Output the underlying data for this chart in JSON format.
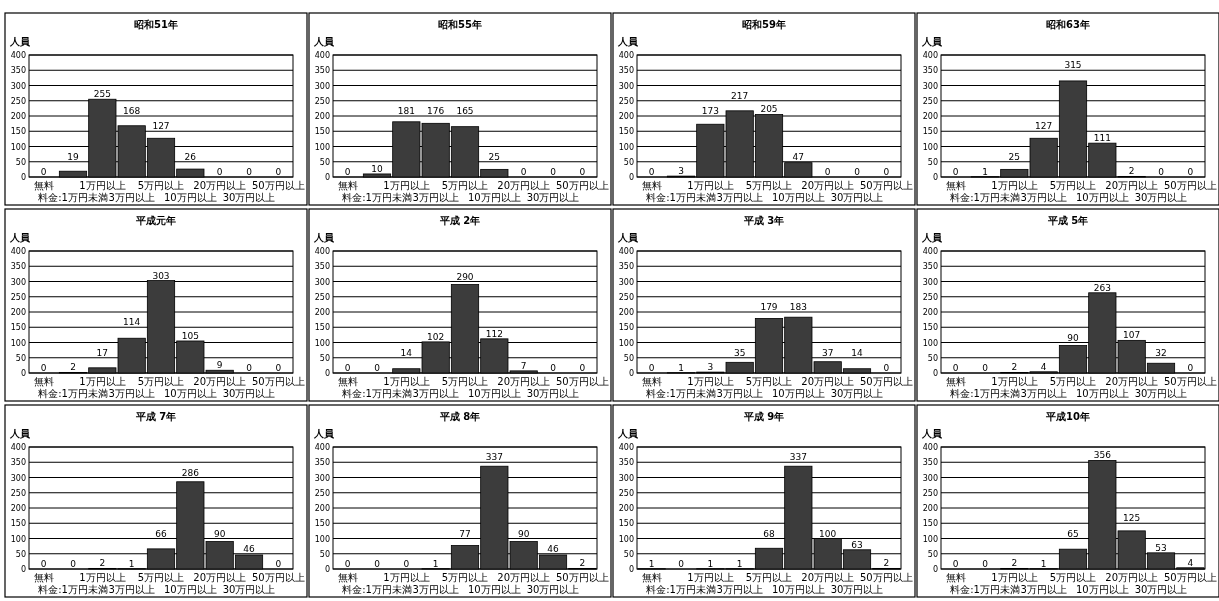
{
  "chart_data": [
    {
      "type": "bar",
      "title": "昭和51年",
      "ylabel": "人員",
      "categories": [
        "無料",
        "料金:1万円未満",
        "1万円以上",
        "3万円以上",
        "5万円以上",
        "10万円以上",
        "20万円以上",
        "30万円以上",
        "50万円以上"
      ],
      "values": [
        0,
        19,
        255,
        168,
        127,
        26,
        0,
        0,
        0
      ],
      "color": "#3c3c3c",
      "ylim": [
        0,
        400
      ],
      "yticks": [
        0,
        50,
        100,
        150,
        200,
        250,
        300,
        350,
        400
      ],
      "grid": "y",
      "data_labels": true
    },
    {
      "type": "bar",
      "title": "昭和55年",
      "ylabel": "人員",
      "categories": [
        "無料",
        "料金:1万円未満",
        "1万円以上",
        "3万円以上",
        "5万円以上",
        "10万円以上",
        "20万円以上",
        "30万円以上",
        "50万円以上"
      ],
      "values": [
        0,
        10,
        181,
        176,
        165,
        25,
        0,
        0,
        0
      ],
      "color": "#3c3c3c",
      "ylim": [
        0,
        400
      ],
      "yticks": [
        0,
        50,
        100,
        150,
        200,
        250,
        300,
        350,
        400
      ],
      "grid": "y",
      "data_labels": true
    },
    {
      "type": "bar",
      "title": "昭和59年",
      "ylabel": "人員",
      "categories": [
        "無料",
        "料金:1万円未満",
        "1万円以上",
        "3万円以上",
        "5万円以上",
        "10万円以上",
        "20万円以上",
        "30万円以上",
        "50万円以上"
      ],
      "values": [
        0,
        3,
        173,
        217,
        205,
        47,
        0,
        0,
        0
      ],
      "color": "#3c3c3c",
      "ylim": [
        0,
        400
      ],
      "yticks": [
        0,
        50,
        100,
        150,
        200,
        250,
        300,
        350,
        400
      ],
      "grid": "y",
      "data_labels": true
    },
    {
      "type": "bar",
      "title": "昭和63年",
      "ylabel": "人員",
      "categories": [
        "無料",
        "料金:1万円未満",
        "1万円以上",
        "3万円以上",
        "5万円以上",
        "10万円以上",
        "20万円以上",
        "30万円以上",
        "50万円以上"
      ],
      "values": [
        0,
        1,
        25,
        127,
        315,
        111,
        2,
        0,
        0
      ],
      "color": "#3c3c3c",
      "ylim": [
        0,
        400
      ],
      "yticks": [
        0,
        50,
        100,
        150,
        200,
        250,
        300,
        350,
        400
      ],
      "grid": "y",
      "data_labels": true
    },
    {
      "type": "bar",
      "title": "平成元年",
      "ylabel": "人員",
      "categories": [
        "無料",
        "料金:1万円未満",
        "1万円以上",
        "3万円以上",
        "5万円以上",
        "10万円以上",
        "20万円以上",
        "30万円以上",
        "50万円以上"
      ],
      "values": [
        0,
        2,
        17,
        114,
        303,
        105,
        9,
        0,
        0
      ],
      "color": "#3c3c3c",
      "ylim": [
        0,
        400
      ],
      "yticks": [
        0,
        50,
        100,
        150,
        200,
        250,
        300,
        350,
        400
      ],
      "grid": "y",
      "data_labels": true
    },
    {
      "type": "bar",
      "title": "平成 2年",
      "ylabel": "人員",
      "categories": [
        "無料",
        "料金:1万円未満",
        "1万円以上",
        "3万円以上",
        "5万円以上",
        "10万円以上",
        "20万円以上",
        "30万円以上",
        "50万円以上"
      ],
      "values": [
        0,
        0,
        14,
        102,
        290,
        112,
        7,
        0,
        0
      ],
      "color": "#3c3c3c",
      "ylim": [
        0,
        400
      ],
      "yticks": [
        0,
        50,
        100,
        150,
        200,
        250,
        300,
        350,
        400
      ],
      "grid": "y",
      "data_labels": true
    },
    {
      "type": "bar",
      "title": "平成 3年",
      "ylabel": "人員",
      "categories": [
        "無料",
        "料金:1万円未満",
        "1万円以上",
        "3万円以上",
        "5万円以上",
        "10万円以上",
        "20万円以上",
        "30万円以上",
        "50万円以上"
      ],
      "values": [
        0,
        1,
        3,
        35,
        179,
        183,
        37,
        14,
        0
      ],
      "color": "#3c3c3c",
      "ylim": [
        0,
        400
      ],
      "yticks": [
        0,
        50,
        100,
        150,
        200,
        250,
        300,
        350,
        400
      ],
      "grid": "y",
      "data_labels": true
    },
    {
      "type": "bar",
      "title": "平成 5年",
      "ylabel": "人員",
      "categories": [
        "無料",
        "料金:1万円未満",
        "1万円以上",
        "3万円以上",
        "5万円以上",
        "10万円以上",
        "20万円以上",
        "30万円以上",
        "50万円以上"
      ],
      "values": [
        0,
        0,
        2,
        4,
        90,
        263,
        107,
        32,
        0
      ],
      "color": "#3c3c3c",
      "ylim": [
        0,
        400
      ],
      "yticks": [
        0,
        50,
        100,
        150,
        200,
        250,
        300,
        350,
        400
      ],
      "grid": "y",
      "data_labels": true
    },
    {
      "type": "bar",
      "title": "平成 7年",
      "ylabel": "人員",
      "categories": [
        "無料",
        "料金:1万円未満",
        "1万円以上",
        "3万円以上",
        "5万円以上",
        "10万円以上",
        "20万円以上",
        "30万円以上",
        "50万円以上"
      ],
      "values": [
        0,
        0,
        2,
        1,
        66,
        286,
        90,
        46,
        0
      ],
      "color": "#3c3c3c",
      "ylim": [
        0,
        400
      ],
      "yticks": [
        0,
        50,
        100,
        150,
        200,
        250,
        300,
        350,
        400
      ],
      "grid": "y",
      "data_labels": true
    },
    {
      "type": "bar",
      "title": "平成 8年",
      "ylabel": "人員",
      "categories": [
        "無料",
        "料金:1万円未満",
        "1万円以上",
        "3万円以上",
        "5万円以上",
        "10万円以上",
        "20万円以上",
        "30万円以上",
        "50万円以上"
      ],
      "values": [
        0,
        0,
        0,
        1,
        77,
        337,
        90,
        46,
        2
      ],
      "color": "#3c3c3c",
      "ylim": [
        0,
        400
      ],
      "yticks": [
        0,
        50,
        100,
        150,
        200,
        250,
        300,
        350,
        400
      ],
      "grid": "y",
      "data_labels": true
    },
    {
      "type": "bar",
      "title": "平成 9年",
      "ylabel": "人員",
      "categories": [
        "無料",
        "料金:1万円未満",
        "1万円以上",
        "3万円以上",
        "5万円以上",
        "10万円以上",
        "20万円以上",
        "30万円以上",
        "50万円以上"
      ],
      "values": [
        1,
        0,
        1,
        1,
        68,
        337,
        100,
        63,
        2
      ],
      "color": "#3c3c3c",
      "ylim": [
        0,
        400
      ],
      "yticks": [
        0,
        50,
        100,
        150,
        200,
        250,
        300,
        350,
        400
      ],
      "grid": "y",
      "data_labels": true
    },
    {
      "type": "bar",
      "title": "平成10年",
      "ylabel": "人員",
      "categories": [
        "無料",
        "料金:1万円未満",
        "1万円以上",
        "3万円以上",
        "5万円以上",
        "10万円以上",
        "20万円以上",
        "30万円以上",
        "50万円以上"
      ],
      "values": [
        0,
        0,
        2,
        1,
        65,
        356,
        125,
        53,
        4
      ],
      "color": "#3c3c3c",
      "ylim": [
        0,
        400
      ],
      "yticks": [
        0,
        50,
        100,
        150,
        200,
        250,
        300,
        350,
        400
      ],
      "grid": "y",
      "data_labels": true
    }
  ]
}
